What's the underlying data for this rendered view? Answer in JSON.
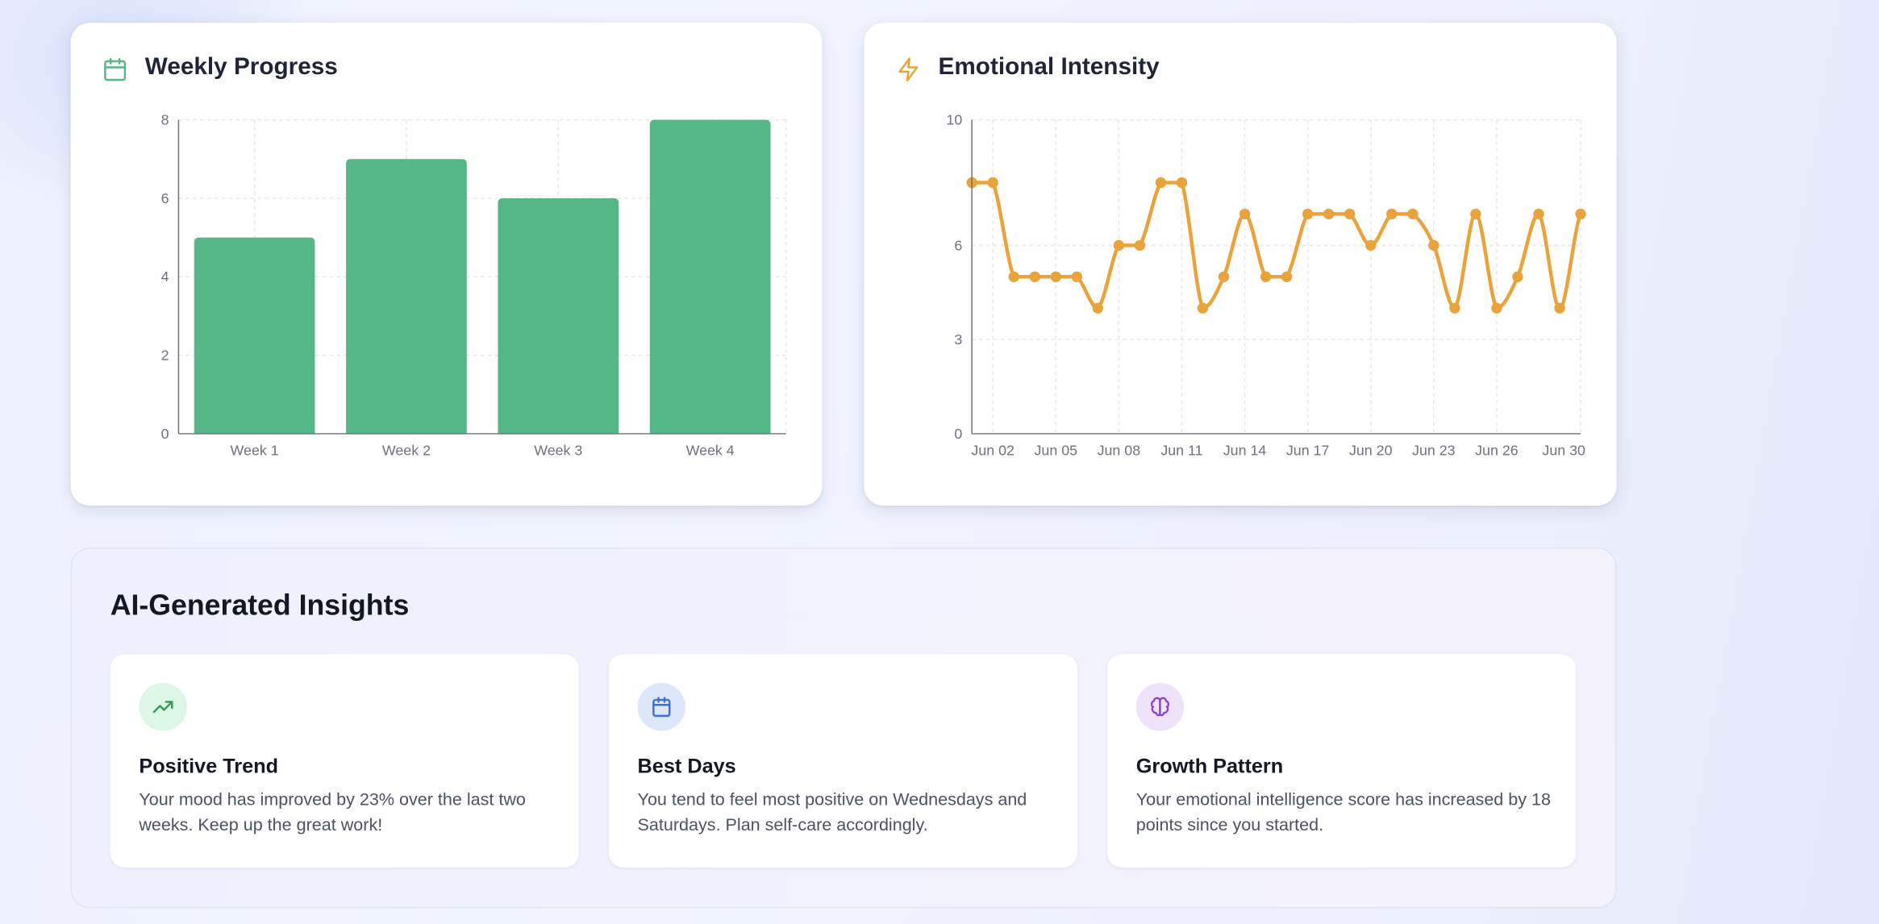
{
  "weekly": {
    "title": "Weekly Progress",
    "icon": "calendar-icon",
    "chart_data": {
      "type": "bar",
      "categories": [
        "Week 1",
        "Week 2",
        "Week 3",
        "Week 4"
      ],
      "values": [
        5,
        7,
        6,
        8
      ],
      "yticks": [
        0,
        2,
        4,
        6,
        8
      ],
      "ylim": [
        0,
        8
      ],
      "grid": true,
      "color": "#55b786"
    }
  },
  "intensity": {
    "title": "Emotional Intensity",
    "icon": "lightning-icon",
    "chart_data": {
      "type": "line",
      "x": [
        "Jun 01",
        "Jun 02",
        "Jun 03",
        "Jun 04",
        "Jun 05",
        "Jun 06",
        "Jun 07",
        "Jun 08",
        "Jun 09",
        "Jun 10",
        "Jun 11",
        "Jun 12",
        "Jun 13",
        "Jun 14",
        "Jun 15",
        "Jun 16",
        "Jun 17",
        "Jun 18",
        "Jun 19",
        "Jun 20",
        "Jun 21",
        "Jun 22",
        "Jun 23",
        "Jun 24",
        "Jun 25",
        "Jun 26",
        "Jun 27",
        "Jun 28",
        "Jun 29",
        "Jun 30"
      ],
      "values": [
        8,
        8,
        5,
        5,
        5,
        5,
        4,
        6,
        6,
        8,
        8,
        4,
        5,
        7,
        5,
        5,
        7,
        7,
        7,
        6,
        7,
        7,
        6,
        4,
        7,
        4,
        5,
        7,
        4,
        7
      ],
      "xticks": [
        "Jun 02",
        "Jun 05",
        "Jun 08",
        "Jun 11",
        "Jun 14",
        "Jun 17",
        "Jun 20",
        "Jun 23",
        "Jun 26",
        "Jun 30"
      ],
      "yticks": [
        0,
        3,
        6,
        10
      ],
      "ylim": [
        0,
        10
      ],
      "grid": true,
      "color": "#eaa33b"
    }
  },
  "insights": {
    "title": "AI-Generated Insights",
    "cards": [
      {
        "title": "Positive Trend",
        "text": "Your mood has improved by 23% over the last two weeks. Keep up the great work!",
        "icon": "trending-up-icon",
        "bg": "#dcf7e6",
        "color": "#3c9a5a"
      },
      {
        "title": "Best Days",
        "text": "You tend to feel most positive on Wednesdays and Saturdays. Plan self-care accordingly.",
        "icon": "calendar-icon",
        "bg": "#dce7fc",
        "color": "#3f6fdc"
      },
      {
        "title": "Growth Pattern",
        "text": "Your emotional intelligence score has increased by 18 points since you started.",
        "icon": "brain-icon",
        "bg": "#efe3fc",
        "color": "#8a3ee0"
      }
    ]
  }
}
